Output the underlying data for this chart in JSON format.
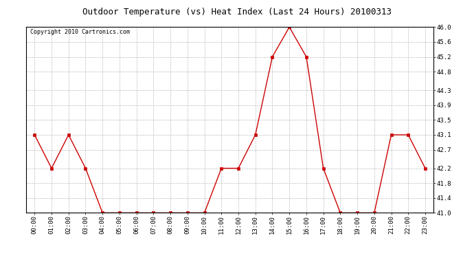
{
  "title": "Outdoor Temperature (vs) Heat Index (Last 24 Hours) 20100313",
  "copyright_text": "Copyright 2010 Cartronics.com",
  "x_labels": [
    "00:00",
    "01:00",
    "02:00",
    "03:00",
    "04:00",
    "05:00",
    "06:00",
    "07:00",
    "08:00",
    "09:00",
    "10:00",
    "11:00",
    "12:00",
    "13:00",
    "14:00",
    "15:00",
    "16:00",
    "17:00",
    "18:00",
    "19:00",
    "20:00",
    "21:00",
    "22:00",
    "23:00"
  ],
  "y_values": [
    43.1,
    42.2,
    43.1,
    42.2,
    41.0,
    41.0,
    41.0,
    41.0,
    41.0,
    41.0,
    41.0,
    42.2,
    42.2,
    43.1,
    45.2,
    46.0,
    45.2,
    42.2,
    41.0,
    41.0,
    41.0,
    43.1,
    43.1,
    42.2
  ],
  "y_min": 41.0,
  "y_max": 46.0,
  "y_ticks": [
    41.0,
    41.4,
    41.8,
    42.2,
    42.7,
    43.1,
    43.5,
    43.9,
    44.3,
    44.8,
    45.2,
    45.6,
    46.0
  ],
  "line_color": "#cc0000",
  "marker_color": "#cc0000",
  "background_color": "#ffffff",
  "grid_color": "#bbbbbb",
  "title_fontsize": 9,
  "copyright_fontsize": 6,
  "tick_fontsize": 6.5
}
